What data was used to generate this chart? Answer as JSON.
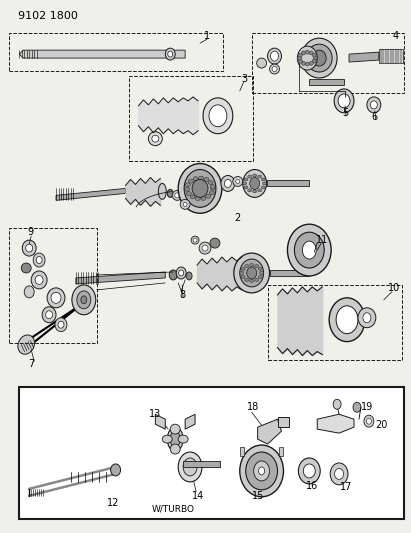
{
  "title_code": "9102 1800",
  "bg_color": "#f5f5f0",
  "fig_width": 4.11,
  "fig_height": 5.33,
  "dpi": 100,
  "wturbo_label": "W/TURBO",
  "line_color": "#1a1a1a",
  "gray1": "#888888",
  "gray2": "#aaaaaa",
  "gray3": "#cccccc",
  "gray4": "#dddddd",
  "white": "#ffffff"
}
